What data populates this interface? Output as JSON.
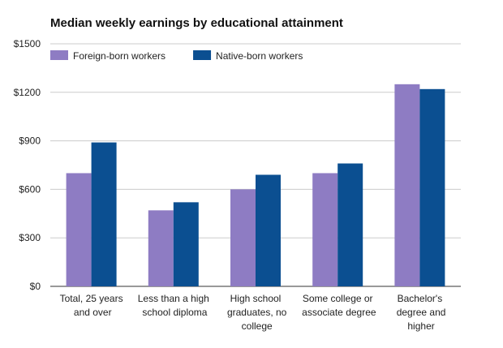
{
  "chart_data": {
    "type": "bar",
    "title": "Median weekly earnings by educational attainment",
    "categories": [
      "Total, 25 years and over",
      "Less than a high school diploma",
      "High school graduates, no college",
      "Some college or associate degree",
      "Bachelor's degree and higher"
    ],
    "series": [
      {
        "name": "Foreign-born workers",
        "color": "#8e7cc3",
        "values": [
          700,
          470,
          600,
          700,
          1250
        ]
      },
      {
        "name": "Native-born workers",
        "color": "#0b4f91",
        "values": [
          890,
          520,
          690,
          760,
          1220
        ]
      }
    ],
    "ylim": [
      0,
      1500
    ],
    "yticks": [
      {
        "value": 0,
        "label": "$0"
      },
      {
        "value": 300,
        "label": "$300"
      },
      {
        "value": 600,
        "label": "$600"
      },
      {
        "value": 900,
        "label": "$900"
      },
      {
        "value": 1200,
        "label": "$1200"
      },
      {
        "value": 1500,
        "label": "$1500"
      }
    ],
    "grid": true,
    "legend": "top"
  }
}
